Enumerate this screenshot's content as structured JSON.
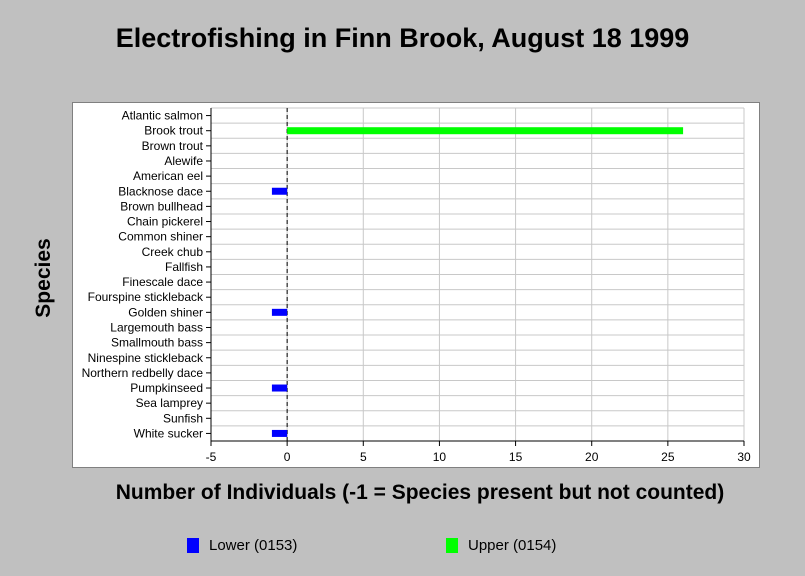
{
  "chart_data": {
    "type": "bar",
    "orientation": "horizontal",
    "title": "Electrofishing in Finn Brook, August 18 1999",
    "xlabel": "Number of Individuals (-1 = Species present but not counted)",
    "ylabel": "Species",
    "xlim": [
      -5,
      30
    ],
    "xticks": [
      -5,
      0,
      5,
      10,
      15,
      20,
      25,
      30
    ],
    "grid": true,
    "legend_position": "bottom",
    "categories": [
      "Atlantic salmon",
      "Brook trout",
      "Brown trout",
      "Alewife",
      "American eel",
      "Blacknose dace",
      "Brown bullhead",
      "Chain pickerel",
      "Common shiner",
      "Creek chub",
      "Fallfish",
      "Finescale dace",
      "Fourspine stickleback",
      "Golden shiner",
      "Largemouth bass",
      "Smallmouth bass",
      "Ninespine stickleback",
      "Northern redbelly dace",
      "Pumpkinseed",
      "Sea lamprey",
      "Sunfish",
      "White sucker"
    ],
    "series": [
      {
        "name": "Lower (0153)",
        "color": "#0000ff",
        "values": [
          0,
          0,
          0,
          0,
          0,
          -1,
          0,
          0,
          0,
          0,
          0,
          0,
          0,
          -1,
          0,
          0,
          0,
          0,
          -1,
          0,
          0,
          -1
        ]
      },
      {
        "name": "Upper (0154)",
        "color": "#00ff00",
        "values": [
          0,
          26,
          0,
          0,
          0,
          0,
          0,
          0,
          0,
          0,
          0,
          0,
          0,
          0,
          0,
          0,
          0,
          0,
          0,
          0,
          0,
          0
        ]
      }
    ]
  }
}
